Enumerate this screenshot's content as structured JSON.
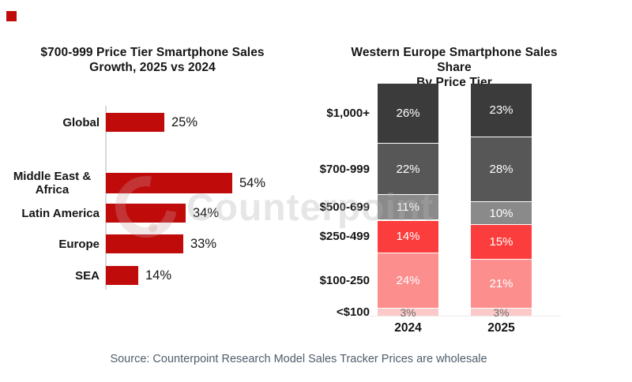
{
  "brand": {
    "accent_color": "#C00B0B"
  },
  "watermark": {
    "text": "Counterpoint",
    "logo": "counterpoint-c-logo"
  },
  "source": {
    "text": "Source: Counterpoint Research Model Sales Tracker Prices are wholesale"
  },
  "chart_data": [
    {
      "type": "bar",
      "orientation": "horizontal",
      "title": "$700-999 Price Tier Smartphone Sales Growth, 2025 vs 2024",
      "title_lines": [
        "$700-999 Price Tier Smartphone Sales",
        "Growth, 2025 vs 2024"
      ],
      "categories": [
        "Global",
        "Middle East &\nAfrica",
        "Latin America",
        "Europe",
        "SEA"
      ],
      "values": [
        25,
        54,
        34,
        33,
        14
      ],
      "value_labels": [
        "25%",
        "54%",
        "34%",
        "33%",
        "14%"
      ],
      "bar_color": "#C00B0B",
      "xlim": [
        0,
        60
      ],
      "grid": false,
      "notes": "extra vertical gap between Global and the regional bars"
    },
    {
      "type": "bar",
      "subtype": "stacked",
      "title": "Western Europe Smartphone Sales Share By Price Tier",
      "title_lines": [
        "Western Europe Smartphone Sales Share",
        "By Price Tier"
      ],
      "categories": [
        "2024",
        "2025"
      ],
      "tiers": [
        "$1,000+",
        "$700-999",
        "$500-699",
        "$250-499",
        "$100-250",
        "<$100"
      ],
      "series": [
        {
          "name": "2024",
          "values": [
            26,
            22,
            11,
            14,
            24,
            3
          ],
          "labels": [
            "26%",
            "22%",
            "11%",
            "14%",
            "24%",
            "3%"
          ]
        },
        {
          "name": "2025",
          "values": [
            23,
            28,
            10,
            15,
            21,
            3
          ],
          "labels": [
            "23%",
            "28%",
            "10%",
            "15%",
            "21%",
            "3%"
          ]
        }
      ],
      "segment_colors": [
        "#3B3B3B",
        "#575757",
        "#8A8A8A",
        "#FC3D3D",
        "#FC8E8E",
        "#FCC9C9"
      ],
      "segment_label_color": "#FFFFFF",
      "last_segment_label_color": "#6E6E6E",
      "ylim": [
        0,
        100
      ],
      "grid": false,
      "legend": "none"
    }
  ]
}
